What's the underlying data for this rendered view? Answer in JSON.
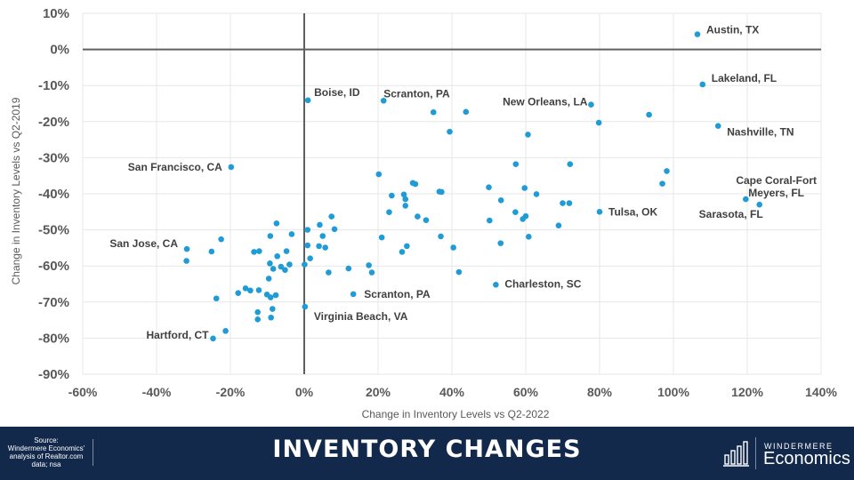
{
  "chart_data": {
    "type": "scatter",
    "xlabel": "Change in Inventory Levels  vs Q2-2022",
    "ylabel": "Change in Inventory Levels  vs Q2-2019",
    "xlim": [
      -60,
      140
    ],
    "ylim": [
      -90,
      10
    ],
    "x_ticks": [
      -60,
      -40,
      -20,
      0,
      20,
      40,
      60,
      80,
      100,
      120,
      140
    ],
    "y_ticks": [
      10,
      0,
      -10,
      -20,
      -30,
      -40,
      -50,
      -60,
      -70,
      -80,
      -90
    ],
    "x_tick_labels": [
      "-60%",
      "-40%",
      "-20%",
      "0%",
      "20%",
      "40%",
      "60%",
      "80%",
      "100%",
      "120%",
      "140%"
    ],
    "y_tick_labels": [
      "10%",
      "0%",
      "-10%",
      "-20%",
      "-30%",
      "-40%",
      "-50%",
      "-60%",
      "-70%",
      "-80%",
      "-90%"
    ],
    "marker_color": "#1f9bd6",
    "labeled_points": [
      {
        "name": "Austin, TX",
        "x": 106.5,
        "y": 4.2
      },
      {
        "name": "Lakeland, FL",
        "x": 107.9,
        "y": -9.7
      },
      {
        "name": "Nashville, TN",
        "x": 112.1,
        "y": -21.2
      },
      {
        "name": "Cape Coral-Fort Meyers, FL",
        "x": 119.6,
        "y": -41.5
      },
      {
        "name": "Sarasota, FL",
        "x": 123.3,
        "y": -43.0
      },
      {
        "name": "Tulsa, OK",
        "x": 80.0,
        "y": -45.0
      },
      {
        "name": "New Orleans, LA",
        "x": 77.7,
        "y": -15.3
      },
      {
        "name": "Charleston, SC",
        "x": 51.9,
        "y": -65.2
      },
      {
        "name": "Scranton, PA",
        "x": 21.5,
        "y": -14.2
      },
      {
        "name": "Scranton, PA",
        "x": 13.3,
        "y": -67.8
      },
      {
        "name": "Boise, ID",
        "x": 1.0,
        "y": -14.1
      },
      {
        "name": "Virginia Beach, VA",
        "x": 0.2,
        "y": -71.3
      },
      {
        "name": "San Francisco, CA",
        "x": -19.8,
        "y": -32.6
      },
      {
        "name": "San Jose, CA",
        "x": -31.8,
        "y": -55.3
      },
      {
        "name": "Hartford, CT",
        "x": -24.7,
        "y": -80.1
      }
    ],
    "points": [
      [
        35.0,
        -17.4
      ],
      [
        43.8,
        -17.3
      ],
      [
        39.4,
        -22.8
      ],
      [
        60.6,
        -23.6
      ],
      [
        79.8,
        -20.3
      ],
      [
        93.4,
        -18.1
      ],
      [
        57.3,
        -31.8
      ],
      [
        72.0,
        -31.8
      ],
      [
        98.2,
        -33.7
      ],
      [
        97.0,
        -37.2
      ],
      [
        20.2,
        -34.6
      ],
      [
        29.4,
        -37.0
      ],
      [
        30.1,
        -37.3
      ],
      [
        36.6,
        -39.4
      ],
      [
        37.2,
        -39.5
      ],
      [
        23.7,
        -40.5
      ],
      [
        27.0,
        -40.2
      ],
      [
        27.4,
        -41.5
      ],
      [
        23.0,
        -45.1
      ],
      [
        27.4,
        -43.3
      ],
      [
        30.7,
        -46.3
      ],
      [
        33.0,
        -47.3
      ],
      [
        50.0,
        -38.2
      ],
      [
        53.3,
        -41.8
      ],
      [
        59.7,
        -38.4
      ],
      [
        62.9,
        -40.1
      ],
      [
        70.0,
        -42.6
      ],
      [
        71.8,
        -42.6
      ],
      [
        57.2,
        -45.1
      ],
      [
        60.0,
        -46.2
      ],
      [
        59.2,
        -47.0
      ],
      [
        50.2,
        -47.4
      ],
      [
        68.9,
        -48.8
      ],
      [
        21.0,
        -52.1
      ],
      [
        37.0,
        -51.8
      ],
      [
        40.4,
        -54.9
      ],
      [
        53.2,
        -53.7
      ],
      [
        60.8,
        -51.9
      ],
      [
        27.8,
        -54.5
      ],
      [
        26.5,
        -56.1
      ],
      [
        41.9,
        -61.7
      ],
      [
        7.4,
        -46.3
      ],
      [
        4.2,
        -48.6
      ],
      [
        8.2,
        -49.8
      ],
      [
        -7.5,
        -48.2
      ],
      [
        0.9,
        -50.0
      ],
      [
        -3.4,
        -51.2
      ],
      [
        -9.2,
        -51.7
      ],
      [
        5.0,
        -51.7
      ],
      [
        0.9,
        -54.3
      ],
      [
        4.0,
        -54.5
      ],
      [
        5.7,
        -54.9
      ],
      [
        1.6,
        -57.9
      ],
      [
        -4.8,
        -55.9
      ],
      [
        -7.3,
        -57.3
      ],
      [
        -12.2,
        -55.9
      ],
      [
        -13.6,
        -56.1
      ],
      [
        -22.5,
        -52.6
      ],
      [
        -25.1,
        -56.0
      ],
      [
        -31.9,
        -58.6
      ],
      [
        0.1,
        -59.6
      ],
      [
        -9.3,
        -59.3
      ],
      [
        -8.4,
        -60.8
      ],
      [
        -6.3,
        -60.2
      ],
      [
        -4.0,
        -59.6
      ],
      [
        -5.2,
        -61.1
      ],
      [
        6.6,
        -61.8
      ],
      [
        12.0,
        -60.7
      ],
      [
        17.5,
        -59.8
      ],
      [
        18.3,
        -61.8
      ],
      [
        -9.6,
        -63.5
      ],
      [
        -15.9,
        -66.2
      ],
      [
        -14.6,
        -66.8
      ],
      [
        -17.9,
        -67.5
      ],
      [
        -12.3,
        -66.7
      ],
      [
        -10.1,
        -67.9
      ],
      [
        -9.1,
        -68.7
      ],
      [
        -7.7,
        -68.1
      ],
      [
        -23.8,
        -69.0
      ],
      [
        -12.6,
        -72.8
      ],
      [
        -12.6,
        -74.8
      ],
      [
        -9.0,
        -74.3
      ],
      [
        -8.6,
        -71.9
      ],
      [
        -21.3,
        -78.0
      ]
    ]
  },
  "footer": {
    "source_lines": [
      "Source:",
      "Windermere Economics'",
      "analysis of Realtor.com",
      "data; nsa"
    ],
    "title": "INVENTORY CHANGES",
    "brand_top": "WINDERMERE",
    "brand_bottom": "Economics"
  }
}
